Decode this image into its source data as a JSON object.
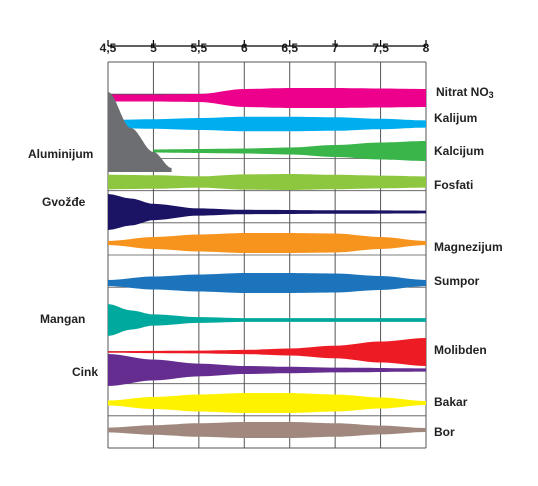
{
  "chart_data": {
    "type": "area",
    "title": "",
    "xlabel": "",
    "ylabel": "",
    "xlim": [
      4.5,
      8
    ],
    "ticks": [
      "4,5",
      "5",
      "5,5",
      "6",
      "6,5",
      "7",
      "7,5",
      "8"
    ],
    "tick_values": [
      4.5,
      5,
      5.5,
      6,
      6.5,
      7,
      7.5,
      8
    ],
    "grid": true,
    "series": [
      {
        "name": "Nitrat NO3",
        "side": "right",
        "color": "#ec008c",
        "points": [
          [
            4.5,
            0.35
          ],
          [
            5.0,
            0.35
          ],
          [
            5.5,
            0.4
          ],
          [
            6.0,
            0.9
          ],
          [
            6.5,
            1.0
          ],
          [
            7.0,
            1.0
          ],
          [
            7.5,
            0.95
          ],
          [
            8.0,
            0.9
          ]
        ]
      },
      {
        "name": "Kalijum",
        "side": "right",
        "color": "#00aeef",
        "points": [
          [
            4.5,
            0.5
          ],
          [
            5.0,
            0.6
          ],
          [
            5.5,
            0.75
          ],
          [
            6.0,
            0.9
          ],
          [
            6.5,
            0.9
          ],
          [
            7.0,
            0.85
          ],
          [
            7.5,
            0.65
          ],
          [
            8.0,
            0.45
          ]
        ]
      },
      {
        "name": "Kalcijum",
        "side": "right",
        "color": "#39b54a",
        "points": [
          [
            5.0,
            0.15
          ],
          [
            5.5,
            0.2
          ],
          [
            6.0,
            0.25
          ],
          [
            6.5,
            0.35
          ],
          [
            7.0,
            0.6
          ],
          [
            7.5,
            0.85
          ],
          [
            8.0,
            1.0
          ]
        ]
      },
      {
        "name": "Fosfati",
        "side": "right",
        "color": "#8dc63f",
        "points": [
          [
            4.5,
            0.9
          ],
          [
            5.0,
            0.85
          ],
          [
            5.5,
            0.7
          ],
          [
            6.0,
            0.95
          ],
          [
            6.5,
            1.0
          ],
          [
            7.0,
            0.9
          ],
          [
            7.5,
            0.8
          ],
          [
            8.0,
            0.7
          ]
        ]
      },
      {
        "name": "Aluminijum",
        "side": "left",
        "color": "#6d6e71",
        "points": [
          [
            4.5,
            1.0
          ],
          [
            4.75,
            0.55
          ],
          [
            5.0,
            0.25
          ],
          [
            5.2,
            0.05
          ]
        ]
      },
      {
        "name": "Gvožđe",
        "side": "left",
        "color": "#1b1464",
        "points": [
          [
            4.5,
            1.0
          ],
          [
            4.75,
            0.75
          ],
          [
            5.0,
            0.45
          ],
          [
            5.5,
            0.2
          ],
          [
            6.0,
            0.12
          ],
          [
            7.0,
            0.1
          ],
          [
            8.0,
            0.08
          ]
        ]
      },
      {
        "name": "Magnezijum",
        "side": "right",
        "color": "#f7941d",
        "points": [
          [
            4.5,
            0.2
          ],
          [
            5.0,
            0.6
          ],
          [
            5.5,
            0.85
          ],
          [
            6.0,
            1.0
          ],
          [
            6.5,
            1.0
          ],
          [
            7.0,
            0.95
          ],
          [
            7.5,
            0.6
          ],
          [
            8.0,
            0.2
          ]
        ]
      },
      {
        "name": "Sumpor",
        "side": "right",
        "color": "#1c75bc",
        "points": [
          [
            4.5,
            0.3
          ],
          [
            5.0,
            0.65
          ],
          [
            5.5,
            0.85
          ],
          [
            6.0,
            1.0
          ],
          [
            6.5,
            1.0
          ],
          [
            7.0,
            0.95
          ],
          [
            7.5,
            0.7
          ],
          [
            8.0,
            0.3
          ]
        ]
      },
      {
        "name": "Mangan",
        "side": "left",
        "color": "#00a99d",
        "points": [
          [
            4.5,
            1.0
          ],
          [
            4.75,
            0.6
          ],
          [
            5.0,
            0.35
          ],
          [
            5.5,
            0.18
          ],
          [
            6.0,
            0.12
          ],
          [
            7.0,
            0.12
          ],
          [
            8.0,
            0.12
          ]
        ]
      },
      {
        "name": "Molibden",
        "side": "right",
        "color": "#ed1c24",
        "points": [
          [
            4.5,
            0.05
          ],
          [
            5.0,
            0.08
          ],
          [
            5.5,
            0.1
          ],
          [
            6.0,
            0.15
          ],
          [
            6.5,
            0.25
          ],
          [
            7.0,
            0.45
          ],
          [
            7.5,
            0.75
          ],
          [
            8.0,
            1.0
          ]
        ]
      },
      {
        "name": "Cink",
        "side": "left",
        "color": "#662d91",
        "points": [
          [
            4.5,
            1.0
          ],
          [
            5.0,
            0.65
          ],
          [
            5.5,
            0.4
          ],
          [
            6.0,
            0.25
          ],
          [
            6.5,
            0.2
          ],
          [
            7.0,
            0.15
          ],
          [
            8.0,
            0.1
          ]
        ]
      },
      {
        "name": "Bakar",
        "side": "right",
        "color": "#fff200",
        "points": [
          [
            4.5,
            0.25
          ],
          [
            5.0,
            0.6
          ],
          [
            5.5,
            0.85
          ],
          [
            6.0,
            1.0
          ],
          [
            6.5,
            1.0
          ],
          [
            7.0,
            0.85
          ],
          [
            7.5,
            0.55
          ],
          [
            8.0,
            0.2
          ]
        ]
      },
      {
        "name": "Bor",
        "side": "right",
        "color": "#a0887e",
        "points": [
          [
            4.5,
            0.3
          ],
          [
            5.0,
            0.6
          ],
          [
            5.5,
            0.85
          ],
          [
            6.0,
            1.0
          ],
          [
            6.5,
            1.0
          ],
          [
            7.0,
            0.85
          ],
          [
            7.5,
            0.55
          ],
          [
            8.0,
            0.25
          ]
        ]
      }
    ]
  }
}
